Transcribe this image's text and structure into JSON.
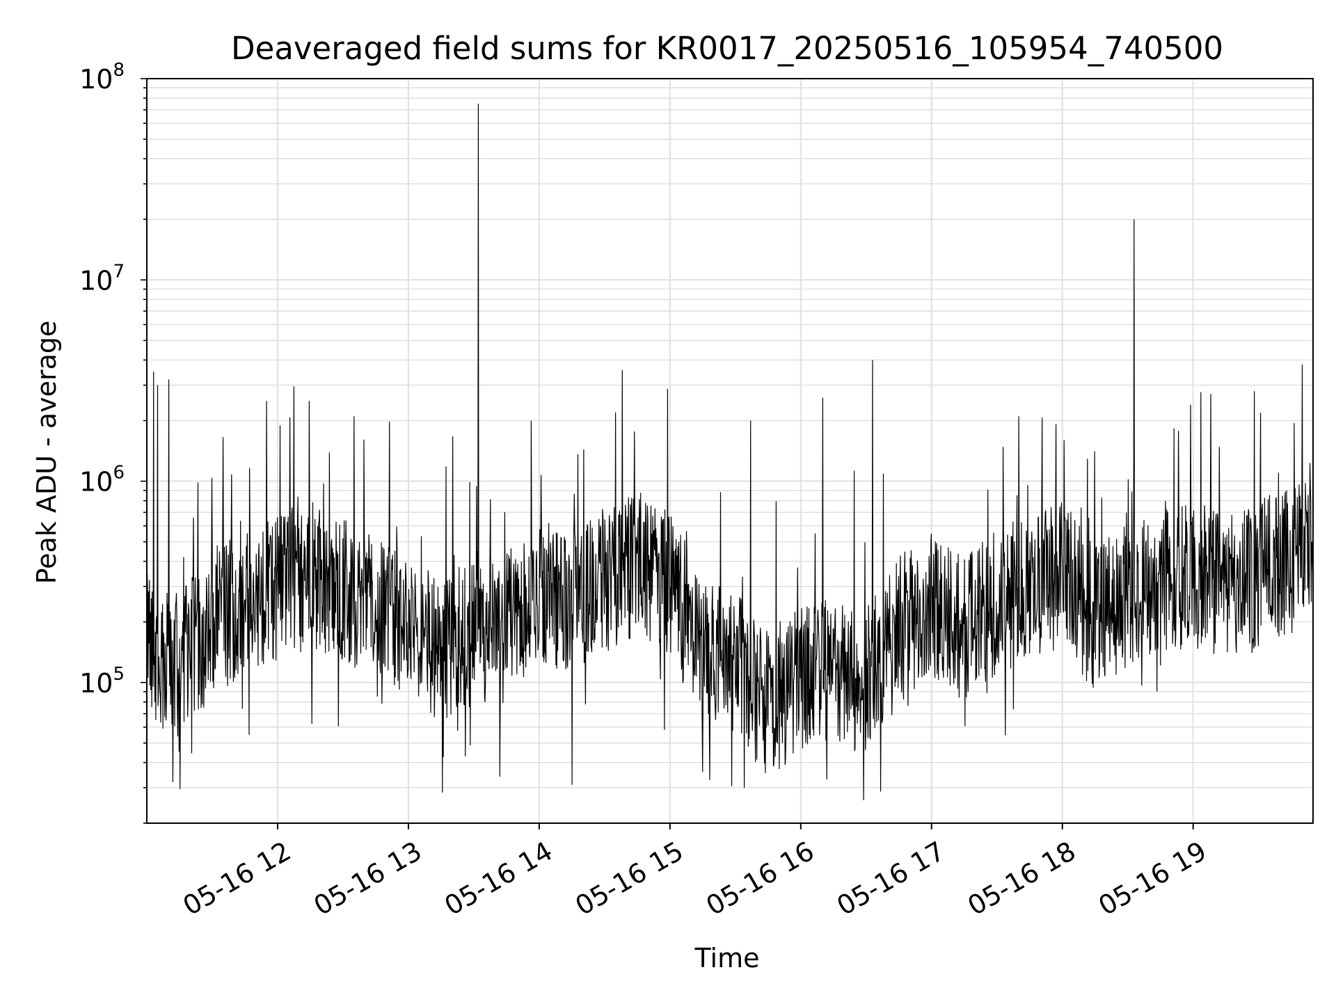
{
  "chart_data": {
    "type": "line",
    "title": "Deaveraged field sums for KR0017_20250516_105954_740500",
    "xlabel": "Time",
    "ylabel": "Peak ADU - average",
    "yscale": "log",
    "ylim": [
      20000,
      100000000
    ],
    "xlim": [
      "05-16 11:00",
      "05-16 19:55"
    ],
    "grid": true,
    "legend": "none",
    "x_ticks": [
      "05-16 12",
      "05-16 13",
      "05-16 14",
      "05-16 15",
      "05-16 16",
      "05-16 17",
      "05-16 18",
      "05-16 19"
    ],
    "y_ticks": [
      {
        "base": "10",
        "exp": "5",
        "value": 100000
      },
      {
        "base": "10",
        "exp": "6",
        "value": 1000000
      },
      {
        "base": "10",
        "exp": "7",
        "value": 10000000
      },
      {
        "base": "10",
        "exp": "8",
        "value": 100000000
      }
    ],
    "line_color": "#000000",
    "grid_color": "#e0e0e0",
    "series": [
      {
        "x": [
          "05-16 11:00",
          "05-16 11:15",
          "05-16 11:30",
          "05-16 11:45",
          "05-16 12:00",
          "05-16 12:15",
          "05-16 12:30",
          "05-16 12:45",
          "05-16 13:00",
          "05-16 13:15",
          "05-16 13:30",
          "05-16 13:45",
          "05-16 14:00",
          "05-16 14:15",
          "05-16 14:30",
          "05-16 14:45",
          "05-16 15:00",
          "05-16 15:15",
          "05-16 15:30",
          "05-16 15:45",
          "05-16 16:00",
          "05-16 16:15",
          "05-16 16:30",
          "05-16 16:45",
          "05-16 17:00",
          "05-16 17:15",
          "05-16 17:30",
          "05-16 17:45",
          "05-16 18:00",
          "05-16 18:15",
          "05-16 18:30",
          "05-16 18:45",
          "05-16 19:00",
          "05-16 19:15",
          "05-16 19:30",
          "05-16 19:45",
          "05-16 19:55"
        ],
        "y": [
          150000,
          120000,
          200000,
          250000,
          300000,
          350000,
          280000,
          250000,
          200000,
          150000,
          180000,
          200000,
          280000,
          250000,
          320000,
          400000,
          300000,
          150000,
          120000,
          80000,
          100000,
          120000,
          100000,
          180000,
          250000,
          180000,
          250000,
          300000,
          350000,
          200000,
          280000,
          300000,
          350000,
          300000,
          350000,
          400000,
          600000
        ]
      }
    ],
    "spikes": [
      {
        "x": "05-16 11:03",
        "y": 3500000
      },
      {
        "x": "05-16 11:05",
        "y": 3000000
      },
      {
        "x": "05-16 11:10",
        "y": 3200000
      },
      {
        "x": "05-16 11:55",
        "y": 2500000
      },
      {
        "x": "05-16 12:35",
        "y": 2100000
      },
      {
        "x": "05-16 13:32",
        "y": 75000000
      },
      {
        "x": "05-16 14:35",
        "y": 2200000
      },
      {
        "x": "05-16 15:37",
        "y": 2000000
      },
      {
        "x": "05-16 16:10",
        "y": 2600000
      },
      {
        "x": "05-16 16:33",
        "y": 4000000
      },
      {
        "x": "05-16 17:40",
        "y": 2100000
      },
      {
        "x": "05-16 18:33",
        "y": 20000000
      },
      {
        "x": "05-16 19:28",
        "y": 2800000
      },
      {
        "x": "05-16 19:50",
        "y": 3800000
      }
    ],
    "minima": [
      {
        "x": "05-16 11:12",
        "y": 32000
      },
      {
        "x": "05-16 13:42",
        "y": 34000
      },
      {
        "x": "05-16 14:15",
        "y": 31000
      },
      {
        "x": "05-16 15:34",
        "y": 30000
      },
      {
        "x": "05-16 16:12",
        "y": 33000
      }
    ]
  }
}
